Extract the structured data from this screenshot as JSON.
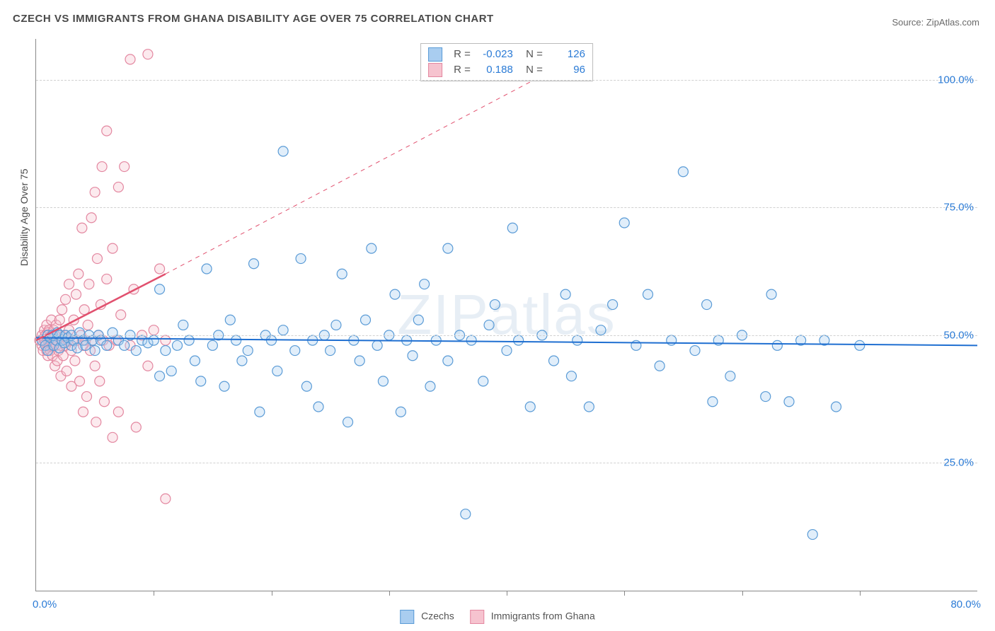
{
  "title": "CZECH VS IMMIGRANTS FROM GHANA DISABILITY AGE OVER 75 CORRELATION CHART",
  "source": "Source: ZipAtlas.com",
  "watermark": "ZIPatlas",
  "chart": {
    "type": "scatter",
    "ylabel": "Disability Age Over 75",
    "xlim": [
      0,
      80
    ],
    "ylim": [
      0,
      108
    ],
    "x_tick_positions": [
      0,
      10,
      20,
      30,
      40,
      50,
      60,
      70,
      80
    ],
    "y_grid": [
      25,
      50,
      75,
      100
    ],
    "y_tick_labels": [
      "25.0%",
      "50.0%",
      "75.0%",
      "100.0%"
    ],
    "x_left_label": "0.0%",
    "x_right_label": "80.0%",
    "background_color": "#ffffff",
    "grid_color": "#d0d0d0",
    "axis_color": "#888888",
    "marker_radius": 7,
    "marker_stroke_width": 1.2,
    "marker_fill_opacity": 0.35,
    "series": [
      {
        "name": "Czechs",
        "color_fill": "#a9cdf0",
        "color_stroke": "#5a9bd6",
        "line_color": "#1f6fd1",
        "R": "-0.023",
        "N": "126",
        "trend": {
          "x1": 0,
          "y1": 49.5,
          "x2": 80,
          "y2": 48.0,
          "dash": false,
          "width": 2
        },
        "points": [
          [
            0.5,
            49
          ],
          [
            0.8,
            48
          ],
          [
            1,
            50
          ],
          [
            1,
            47
          ],
          [
            1.2,
            49.5
          ],
          [
            1.4,
            50
          ],
          [
            1.5,
            48
          ],
          [
            1.7,
            49
          ],
          [
            1.8,
            50.5
          ],
          [
            2,
            47.5
          ],
          [
            2,
            50
          ],
          [
            2.2,
            49
          ],
          [
            2.4,
            48.5
          ],
          [
            2.5,
            50
          ],
          [
            2.7,
            49.5
          ],
          [
            3,
            48
          ],
          [
            3,
            50
          ],
          [
            3.2,
            49
          ],
          [
            3.5,
            47.5
          ],
          [
            3.7,
            50.5
          ],
          [
            4,
            49
          ],
          [
            4.2,
            48
          ],
          [
            4.5,
            50
          ],
          [
            4.8,
            49
          ],
          [
            5,
            47
          ],
          [
            5.3,
            50
          ],
          [
            5.5,
            49
          ],
          [
            6,
            48
          ],
          [
            6.5,
            50.5
          ],
          [
            7,
            49
          ],
          [
            7.5,
            48
          ],
          [
            8,
            50
          ],
          [
            8.5,
            47
          ],
          [
            9,
            49
          ],
          [
            9.5,
            48.5
          ],
          [
            10,
            49
          ],
          [
            10.5,
            42
          ],
          [
            10.5,
            59
          ],
          [
            11,
            47
          ],
          [
            11.5,
            43
          ],
          [
            12,
            48
          ],
          [
            12.5,
            52
          ],
          [
            13,
            49
          ],
          [
            13.5,
            45
          ],
          [
            14,
            41
          ],
          [
            14.5,
            63
          ],
          [
            15,
            48
          ],
          [
            15.5,
            50
          ],
          [
            16,
            40
          ],
          [
            16.5,
            53
          ],
          [
            17,
            49
          ],
          [
            17.5,
            45
          ],
          [
            18,
            47
          ],
          [
            18.5,
            64
          ],
          [
            19,
            35
          ],
          [
            19.5,
            50
          ],
          [
            20,
            49
          ],
          [
            20.5,
            43
          ],
          [
            21,
            51
          ],
          [
            21,
            86
          ],
          [
            22,
            47
          ],
          [
            22.5,
            65
          ],
          [
            23,
            40
          ],
          [
            23.5,
            49
          ],
          [
            24,
            36
          ],
          [
            24.5,
            50
          ],
          [
            25,
            47
          ],
          [
            25.5,
            52
          ],
          [
            26,
            62
          ],
          [
            26.5,
            33
          ],
          [
            27,
            49
          ],
          [
            27.5,
            45
          ],
          [
            28,
            53
          ],
          [
            28.5,
            67
          ],
          [
            29,
            48
          ],
          [
            29.5,
            41
          ],
          [
            30,
            50
          ],
          [
            30.5,
            58
          ],
          [
            31,
            35
          ],
          [
            31.5,
            49
          ],
          [
            32,
            46
          ],
          [
            32.5,
            53
          ],
          [
            33,
            60
          ],
          [
            33.5,
            40
          ],
          [
            34,
            49
          ],
          [
            35,
            45
          ],
          [
            35,
            67
          ],
          [
            36,
            50
          ],
          [
            36.5,
            15
          ],
          [
            37,
            49
          ],
          [
            38,
            41
          ],
          [
            38.5,
            52
          ],
          [
            39,
            56
          ],
          [
            40,
            47
          ],
          [
            40.5,
            71
          ],
          [
            41,
            49
          ],
          [
            42,
            36
          ],
          [
            43,
            50
          ],
          [
            44,
            45
          ],
          [
            45,
            58
          ],
          [
            45.5,
            42
          ],
          [
            46,
            49
          ],
          [
            47,
            36
          ],
          [
            48,
            51
          ],
          [
            49,
            56
          ],
          [
            50,
            72
          ],
          [
            51,
            48
          ],
          [
            52,
            58
          ],
          [
            53,
            44
          ],
          [
            54,
            49
          ],
          [
            55,
            82
          ],
          [
            56,
            47
          ],
          [
            57,
            56
          ],
          [
            57.5,
            37
          ],
          [
            58,
            49
          ],
          [
            59,
            42
          ],
          [
            60,
            50
          ],
          [
            62,
            38
          ],
          [
            62.5,
            58
          ],
          [
            63,
            48
          ],
          [
            64,
            37
          ],
          [
            65,
            49
          ],
          [
            66,
            11
          ],
          [
            67,
            49
          ],
          [
            68,
            36
          ],
          [
            70,
            48
          ]
        ]
      },
      {
        "name": "Immigrants from Ghana",
        "color_fill": "#f6c3cf",
        "color_stroke": "#e387a0",
        "line_color": "#e1506e",
        "R": "0.188",
        "N": "96",
        "trend_solid": {
          "x1": 0,
          "y1": 49,
          "x2": 11,
          "y2": 62,
          "dash": false,
          "width": 2.5
        },
        "trend_dash": {
          "x1": 11,
          "y1": 62,
          "x2": 44,
          "y2": 102,
          "dash": true,
          "width": 1
        },
        "points": [
          [
            0.3,
            49
          ],
          [
            0.5,
            48
          ],
          [
            0.5,
            50
          ],
          [
            0.6,
            47
          ],
          [
            0.7,
            51
          ],
          [
            0.7,
            49
          ],
          [
            0.8,
            48.5
          ],
          [
            0.8,
            50
          ],
          [
            0.9,
            47
          ],
          [
            0.9,
            52
          ],
          [
            1,
            49
          ],
          [
            1,
            50.5
          ],
          [
            1,
            46
          ],
          [
            1.1,
            48
          ],
          [
            1.1,
            51
          ],
          [
            1.2,
            49
          ],
          [
            1.2,
            47
          ],
          [
            1.3,
            50
          ],
          [
            1.3,
            53
          ],
          [
            1.4,
            48
          ],
          [
            1.4,
            46
          ],
          [
            1.5,
            49.5
          ],
          [
            1.5,
            51
          ],
          [
            1.6,
            44
          ],
          [
            1.6,
            50
          ],
          [
            1.7,
            48
          ],
          [
            1.7,
            52
          ],
          [
            1.8,
            49
          ],
          [
            1.8,
            45
          ],
          [
            1.9,
            47
          ],
          [
            2,
            50
          ],
          [
            2,
            53
          ],
          [
            2.1,
            48
          ],
          [
            2.1,
            42
          ],
          [
            2.2,
            49
          ],
          [
            2.2,
            55
          ],
          [
            2.3,
            46
          ],
          [
            2.4,
            50
          ],
          [
            2.5,
            48
          ],
          [
            2.5,
            57
          ],
          [
            2.6,
            43
          ],
          [
            2.7,
            49
          ],
          [
            2.8,
            51
          ],
          [
            2.8,
            60
          ],
          [
            3,
            47
          ],
          [
            3,
            40
          ],
          [
            3.1,
            49
          ],
          [
            3.2,
            53
          ],
          [
            3.3,
            45
          ],
          [
            3.4,
            58
          ],
          [
            3.5,
            49
          ],
          [
            3.6,
            62
          ],
          [
            3.7,
            41
          ],
          [
            3.8,
            50
          ],
          [
            3.9,
            71
          ],
          [
            4,
            48
          ],
          [
            4,
            35
          ],
          [
            4.1,
            55
          ],
          [
            4.2,
            49
          ],
          [
            4.3,
            38
          ],
          [
            4.4,
            52
          ],
          [
            4.5,
            60
          ],
          [
            4.6,
            47
          ],
          [
            4.7,
            73
          ],
          [
            4.8,
            49
          ],
          [
            5,
            78
          ],
          [
            5,
            44
          ],
          [
            5.1,
            33
          ],
          [
            5.2,
            65
          ],
          [
            5.3,
            50
          ],
          [
            5.4,
            41
          ],
          [
            5.5,
            56
          ],
          [
            5.6,
            83
          ],
          [
            5.7,
            49
          ],
          [
            5.8,
            37
          ],
          [
            6,
            61
          ],
          [
            6,
            90
          ],
          [
            6.2,
            48
          ],
          [
            6.5,
            30
          ],
          [
            6.5,
            67
          ],
          [
            6.8,
            49
          ],
          [
            7,
            79
          ],
          [
            7,
            35
          ],
          [
            7.2,
            54
          ],
          [
            7.5,
            83
          ],
          [
            8,
            48
          ],
          [
            8,
            104
          ],
          [
            8.3,
            59
          ],
          [
            8.5,
            32
          ],
          [
            9,
            50
          ],
          [
            9.5,
            105
          ],
          [
            9.5,
            44
          ],
          [
            10,
            51
          ],
          [
            10.5,
            63
          ],
          [
            11,
            49
          ],
          [
            11,
            18
          ]
        ]
      }
    ]
  },
  "legend": {
    "series1": "Czechs",
    "series2": "Immigrants from Ghana"
  }
}
